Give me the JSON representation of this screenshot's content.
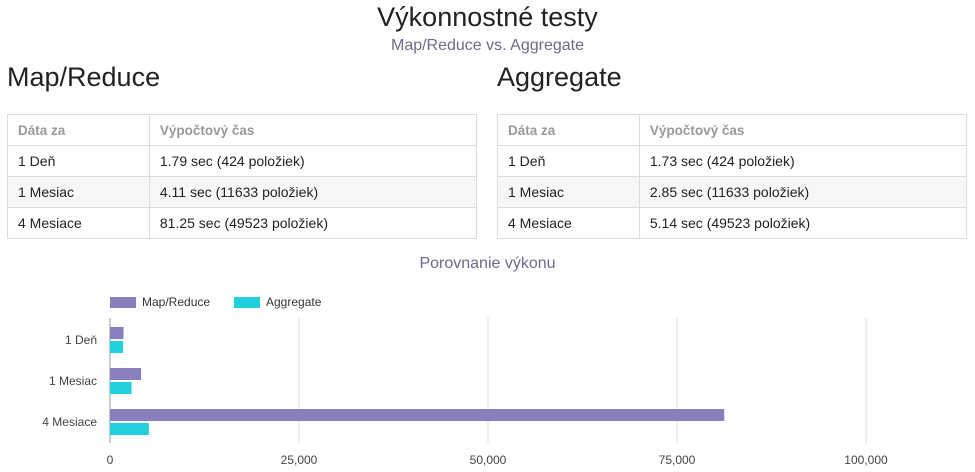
{
  "header": {
    "title": "Výkonnostné testy",
    "subtitle": "Map/Reduce vs. Aggregate"
  },
  "tables": [
    {
      "title": "Map/Reduce",
      "columns": [
        "Dáta za",
        "Výpočtový čas"
      ],
      "rows": [
        [
          "1 Deň",
          "1.79 sec (424 položiek)"
        ],
        [
          "1 Mesiac",
          "4.11 sec (11633 položiek)"
        ],
        [
          "4 Mesiace",
          "81.25 sec (49523 položiek)"
        ]
      ]
    },
    {
      "title": "Aggregate",
      "columns": [
        "Dáta za",
        "Výpočtový čas"
      ],
      "rows": [
        [
          "1 Deň",
          "1.73 sec (424 položiek)"
        ],
        [
          "1 Mesiac",
          "2.85 sec (11633 položiek)"
        ],
        [
          "4 Mesiace",
          "5.14 sec (49523 položiek)"
        ]
      ]
    }
  ],
  "chart_data": {
    "type": "bar",
    "orientation": "horizontal",
    "title": "Porovnanie výkonu",
    "categories": [
      "1 Deň",
      "1 Mesiac",
      "4 Mesiace"
    ],
    "series": [
      {
        "name": "Map/Reduce",
        "values": [
          1790,
          4110,
          81250
        ],
        "color": "#8a7fbd"
      },
      {
        "name": "Aggregate",
        "values": [
          1730,
          2850,
          5140
        ],
        "color": "#22cfdc"
      }
    ],
    "xlim": [
      0,
      100000
    ],
    "xticks": [
      0,
      25000,
      50000,
      75000,
      100000
    ],
    "xtick_labels": [
      "0",
      "25,000",
      "50,000",
      "75,000",
      "100,000"
    ],
    "grid": true,
    "legend_position": "top-left"
  }
}
